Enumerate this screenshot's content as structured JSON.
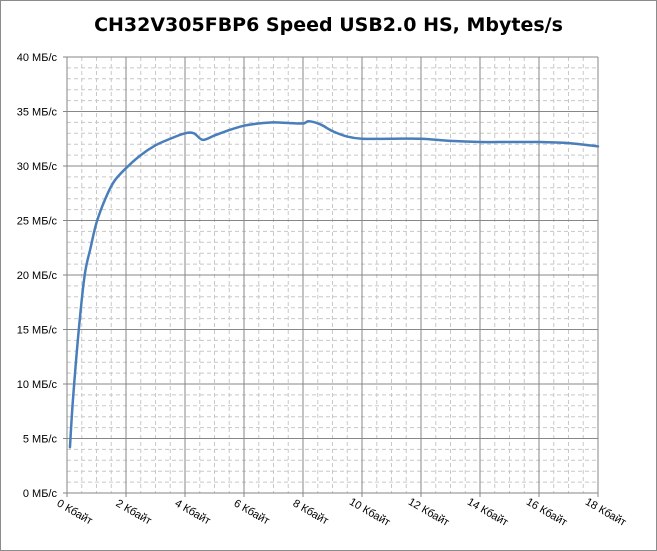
{
  "chart_data": {
    "type": "line",
    "title": "CH32V305FBP6 Speed USB2.0 HS, Mbytes/s",
    "xlabel": "",
    "ylabel": "",
    "xlim": [
      0,
      18
    ],
    "ylim": [
      0,
      40
    ],
    "x_ticks": [
      0,
      2,
      4,
      6,
      8,
      10,
      12,
      14,
      16,
      18
    ],
    "x_tick_labels": [
      "0 Кбайт",
      "2 Кбайт",
      "4 Кбайт",
      "6 Кбайт",
      "8 Кбайт",
      "10 Кбайт",
      "12 Кбайт",
      "14 Кбайт",
      "16 Кбайт",
      "18 Кбайт"
    ],
    "y_ticks": [
      0,
      5,
      10,
      15,
      20,
      25,
      30,
      35,
      40
    ],
    "y_tick_labels": [
      "0 МБ/с",
      "5 МБ/с",
      "10 МБ/с",
      "15 МБ/с",
      "20 МБ/с",
      "25 МБ/с",
      "30 МБ/с",
      "35 МБ/с",
      "40 МБ/с"
    ],
    "grid": "major and minor",
    "legend": "none",
    "series": [
      {
        "color": "#4a7ebb",
        "x": [
          0.1,
          0.2,
          0.4,
          0.6,
          0.8,
          1.0,
          1.3,
          1.6,
          2.0,
          2.5,
          3.0,
          3.5,
          4.0,
          4.3,
          4.6,
          5.0,
          5.5,
          6.0,
          6.5,
          7.0,
          7.5,
          8.0,
          8.2,
          8.6,
          9.0,
          9.5,
          10.0,
          11.0,
          12.0,
          13.0,
          14.0,
          15.0,
          16.0,
          17.0,
          18.0
        ],
        "y": [
          4.2,
          8.5,
          15.0,
          20.0,
          22.5,
          24.8,
          27.0,
          28.6,
          29.8,
          31.0,
          31.9,
          32.5,
          33.0,
          33.0,
          32.4,
          32.8,
          33.3,
          33.7,
          33.9,
          34.0,
          33.95,
          33.9,
          34.1,
          33.8,
          33.2,
          32.7,
          32.5,
          32.5,
          32.5,
          32.3,
          32.2,
          32.2,
          32.2,
          32.1,
          31.8
        ]
      }
    ]
  }
}
